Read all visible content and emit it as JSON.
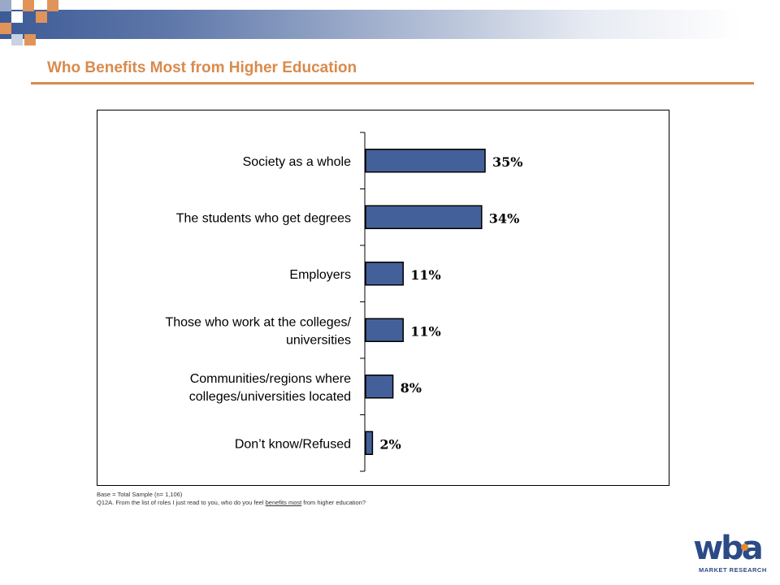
{
  "header": {
    "title": "Who Benefits Most from Higher Education"
  },
  "colors": {
    "bar": "#44609a",
    "title": "#d98a4c",
    "banner": "#3d5a96",
    "accent_square": "#e0945a"
  },
  "chart_data": {
    "type": "bar",
    "orientation": "horizontal",
    "title": "",
    "xlabel": "",
    "ylabel": "",
    "categories": [
      "Society as a whole",
      "The students who get degrees",
      "Employers",
      "Those who work at the colleges/ universities",
      "Communities/regions where colleges/universities located",
      "Don’t know/Refused"
    ],
    "category_lines": [
      [
        "Society as a whole"
      ],
      [
        "The students who get degrees"
      ],
      [
        "Employers"
      ],
      [
        "Those who work at the colleges/",
        "universities"
      ],
      [
        "Communities/regions where",
        "colleges/universities located"
      ],
      [
        "Don’t know/Refused"
      ]
    ],
    "values": [
      35,
      34,
      11,
      11,
      8,
      2
    ],
    "value_labels": [
      "35%",
      "34%",
      "11%",
      "11%",
      "8%",
      "2%"
    ],
    "unit": "%",
    "xlim": [
      0,
      100
    ],
    "grid": false,
    "legend": "none"
  },
  "footnotes": {
    "base": "Base = Total Sample (n= 1,106)",
    "question_prefix": "Q12A.  From the list of roles I just read to you, who do you feel ",
    "question_underlined": "benefits most",
    "question_suffix": " from higher education?"
  },
  "logo": {
    "name": "wba",
    "tagline": "MARKET RESEARCH"
  }
}
